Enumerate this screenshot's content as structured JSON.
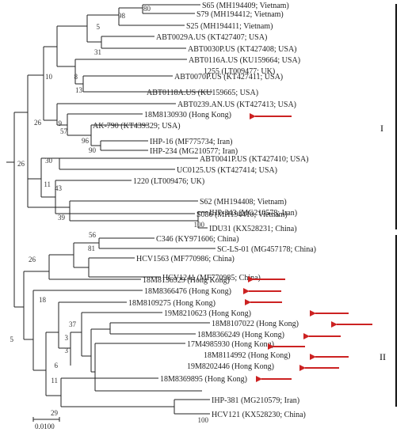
{
  "tips": [
    {
      "id": "t1",
      "text": "S65 (MH194409; Vietnam)"
    },
    {
      "id": "t2",
      "text": "S79 (MH194412; Vietnam)"
    },
    {
      "id": "t3",
      "text": "S25 (MH194411; Vietnam)"
    },
    {
      "id": "t4",
      "text": "ABT0029A.US (KT427407; USA)"
    },
    {
      "id": "t5",
      "text": "ABT0030P.US (KT427408; USA)"
    },
    {
      "id": "t6",
      "text": "ABT0116A.US (KU159664; USA)"
    },
    {
      "id": "t7",
      "text": "1255 (LT009477; UK)"
    },
    {
      "id": "t8",
      "text": "ABT0070P.US (KT427411; USA)"
    },
    {
      "id": "t9",
      "text": "ABT0118A.US (KU159665; USA)"
    },
    {
      "id": "t10",
      "text": "ABT0239.AN.US (KT427413; USA)"
    },
    {
      "id": "t11",
      "text": "18M8130930 (Hong Kong)"
    },
    {
      "id": "t12",
      "text": "AK-790 (KT439329; USA)"
    },
    {
      "id": "t13",
      "text": "IHP-16 (MF775734; Iran)"
    },
    {
      "id": "t14",
      "text": "IHP-234 (MG210577; Iran)"
    },
    {
      "id": "t15",
      "text": "ABT0041P.US (KT427410; USA)"
    },
    {
      "id": "t16",
      "text": "UC0125.US (KT427414; USA)"
    },
    {
      "id": "t17",
      "text": "1220 (LT009476; UK)"
    },
    {
      "id": "t18",
      "text": "S086 (MH194410; Vietnam)"
    },
    {
      "id": "t19",
      "text": "S62 (MH194408; Vietnam)"
    },
    {
      "id": "t20",
      "text": "IHP-343 (MG210578; Iran)"
    },
    {
      "id": "t21",
      "text": "IDU31 (KX528231; China)"
    },
    {
      "id": "t22",
      "text": "C346 (KY971606; China)"
    },
    {
      "id": "t23",
      "text": "SC-LS-01 (MG457178; China)"
    },
    {
      "id": "t24",
      "text": "HCV1563 (MF770986; China)"
    },
    {
      "id": "t25",
      "text": "HCV1241 (MF770985; China)"
    },
    {
      "id": "t26",
      "text": "18M8136929 (Hong Kong)"
    },
    {
      "id": "t27",
      "text": "18M8366476 (Hong Kong)"
    },
    {
      "id": "t28",
      "text": "18M8109275 (Hong Kong)"
    },
    {
      "id": "t29",
      "text": "19M8210623 (Hong Kong)"
    },
    {
      "id": "t30",
      "text": "18M8107022 (Hong Kong)"
    },
    {
      "id": "t31",
      "text": "18M8366249 (Hong Kong)"
    },
    {
      "id": "t32",
      "text": "17M4985930 (Hong Kong)"
    },
    {
      "id": "t33",
      "text": "18M8114992 (Hong Kong)"
    },
    {
      "id": "t34",
      "text": "19M8202446 (Hong Kong)"
    },
    {
      "id": "t35",
      "text": "18M8369895 (Hong Kong)"
    },
    {
      "id": "t36",
      "text": "IHP-381 (MG210579; Iran)"
    },
    {
      "id": "t37",
      "text": "HCV121 (KX528230; China)"
    }
  ],
  "bootstrap": [
    "80",
    "98",
    "5",
    "31",
    "8",
    "13",
    "10",
    "9",
    "57",
    "96",
    "90",
    "26",
    "30",
    "11",
    "43",
    "26",
    "39",
    "100",
    "56",
    "81",
    "26",
    "18",
    "37",
    "3",
    "3",
    "5",
    "6",
    "11",
    "29",
    "100"
  ],
  "groups": [
    {
      "label": "I"
    },
    {
      "label": "II"
    }
  ],
  "highlighted_tips": [
    "18M8130930",
    "18M8136929",
    "18M8366476",
    "18M8109275",
    "19M8210623",
    "18M8107022",
    "18M8366249",
    "17M4985930",
    "18M8114992",
    "19M8202446",
    "18M8369895"
  ],
  "arrow_color": "#cc2222",
  "line_color": "#222222",
  "scale_bar": {
    "label": "0.0100"
  }
}
